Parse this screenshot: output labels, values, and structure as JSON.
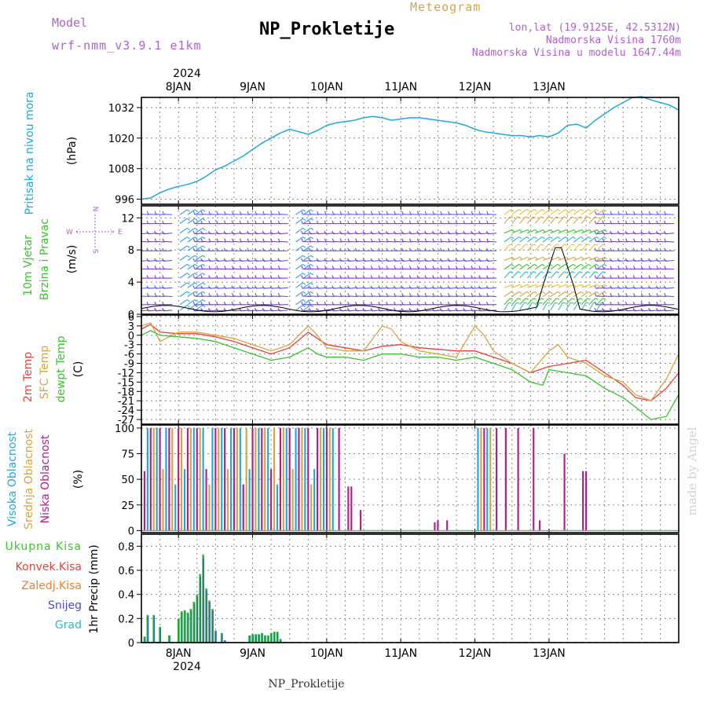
{
  "header": {
    "model_label": "Model",
    "model_name": "wrf-nmm_v3.9.1 e1km",
    "title": "NP_Prokletije",
    "subtitle": "Meteogram",
    "lonlat": "lon,lat (19.9125E, 42.5312N)",
    "altitude": "Nadmorska Visina 1760m",
    "model_altitude": "Nadmorska Visina u modelu 1647.44m",
    "footer": "NP_Prokletije",
    "credit": "made by Angel"
  },
  "colors": {
    "pressure": "#1fa8e0",
    "temp2m": "#e8413c",
    "sfc_temp": "#d9a441",
    "dewpt": "#39c42c",
    "cloud_high": "#1fa8e0",
    "cloud_mid": "#d9a441",
    "cloud_low": "#b0208a",
    "precip_total": "#39c42c",
    "precip_conv": "#e8413c",
    "precip_frozen": "#f07e2e",
    "snow": "#4b4bd6",
    "hail": "#2fb8c8",
    "header_purple": "#b260d0",
    "header_orange": "#d9a441"
  },
  "chart_data": [
    {
      "id": "pressure",
      "type": "line",
      "ylabel_left": "Pritisak na nivou mora",
      "unit": "(hPa)",
      "x_unit": "hours since 2024-01-07 12:00",
      "ylim": [
        994,
        1036
      ],
      "yticks": [
        996,
        1008,
        1020,
        1032
      ],
      "top_dates": {
        "year": "2024",
        "labels": [
          "8JAN",
          "9JAN",
          "10JAN",
          "11JAN",
          "12JAN",
          "13JAN"
        ]
      },
      "series": [
        {
          "x": [
            0,
            3,
            6,
            9,
            12,
            15,
            18,
            21,
            24,
            27,
            30,
            33,
            36,
            39,
            42,
            45,
            48,
            51,
            54,
            57,
            60,
            63,
            66,
            69,
            72,
            75,
            78,
            81,
            84,
            87,
            90,
            93,
            96,
            99,
            102,
            105,
            108,
            111,
            114,
            117,
            120,
            123,
            126,
            129,
            132,
            135,
            138,
            141,
            144,
            147,
            150,
            153,
            156,
            159,
            162,
            165,
            168,
            171,
            174,
            144
          ],
          "y": [
            996,
            996.5,
            998.5,
            1000,
            1001,
            1001.8,
            1003,
            1005,
            1007.5,
            1009,
            1011,
            1013,
            1015.5,
            1018,
            1020,
            1022,
            1023.5,
            1022.5,
            1021.5,
            1023,
            1025,
            1026,
            1026.5,
            1027,
            1028,
            1028.5,
            1028,
            1027,
            1027.5,
            1028,
            1028,
            1027.5,
            1027,
            1026.5,
            1026,
            1025,
            1023.5,
            1022.5,
            1022,
            1021.5,
            1021,
            1021,
            1020.5,
            1021,
            1020.5,
            1022,
            1025,
            1025.5,
            1024,
            1027,
            1029.5,
            1032,
            1034,
            1036,
            1036.3,
            1035,
            1034,
            1033,
            1031,
            1024
          ]
        }
      ]
    },
    {
      "id": "wind",
      "type": "barbs",
      "ylabel_left": [
        "10m Vjetar",
        "Brzina i Pravac"
      ],
      "unit": "(m/s)",
      "compass": {
        "n": "N",
        "s": "S",
        "e": "E",
        "w": "W"
      },
      "ylim": [
        0,
        13.5
      ],
      "yticks": [
        0,
        4,
        8,
        12
      ]
    },
    {
      "id": "temperature",
      "type": "line",
      "ylabel_left": [
        "2m Temp",
        "SFC Temp",
        "dewpt Temp"
      ],
      "unit": "(C)",
      "ylim": [
        -28.5,
        6.5
      ],
      "yticks": [
        6,
        3,
        0,
        -3,
        -6,
        -9,
        -12,
        -15,
        -18,
        -21,
        -24,
        -27
      ],
      "series": [
        {
          "id": "temp2m",
          "x": [
            0,
            3,
            6,
            12,
            18,
            24,
            30,
            36,
            42,
            48,
            54,
            57,
            60,
            66,
            72,
            78,
            84,
            90,
            96,
            102,
            108,
            114,
            120,
            126,
            132,
            138,
            144,
            150,
            156,
            160,
            165,
            170,
            174
          ],
          "y": [
            2,
            3.5,
            1,
            0.5,
            0.5,
            -0.5,
            -2,
            -4,
            -6,
            -4,
            1,
            -1,
            -3,
            -4,
            -5,
            -3.5,
            -3,
            -4,
            -4.5,
            -5,
            -5,
            -7,
            -9,
            -12,
            -10,
            -9,
            -8,
            -12,
            -16,
            -20,
            -21,
            -17,
            -12
          ]
        },
        {
          "id": "sfc_temp",
          "x": [
            0,
            3,
            5,
            6,
            12,
            18,
            24,
            30,
            36,
            42,
            48,
            54,
            57,
            60,
            66,
            72,
            78,
            81,
            84,
            90,
            96,
            102,
            108,
            111,
            114,
            120,
            126,
            132,
            135,
            138,
            144,
            150,
            156,
            160,
            165,
            170,
            174
          ],
          "y": [
            3,
            4,
            0,
            -2,
            1,
            1,
            0,
            -1,
            -3,
            -5,
            -3,
            3,
            0,
            -4,
            -5,
            -5,
            3,
            2,
            -2,
            -5,
            -6,
            -7,
            3,
            0,
            -5,
            -9,
            -12,
            -5,
            -3,
            -7,
            -9,
            -13,
            -15,
            -19,
            -21,
            -14,
            -6
          ]
        },
        {
          "id": "dewpt",
          "x": [
            0,
            3,
            6,
            12,
            18,
            24,
            30,
            36,
            42,
            48,
            54,
            57,
            60,
            66,
            72,
            78,
            84,
            90,
            96,
            102,
            108,
            114,
            120,
            126,
            130,
            132,
            138,
            144,
            150,
            156,
            160,
            165,
            170,
            174
          ],
          "y": [
            0,
            1.5,
            0,
            -0.5,
            -1,
            -2,
            -4,
            -6,
            -8,
            -7,
            -4,
            -6,
            -7,
            -7,
            -8,
            -6,
            -6,
            -7,
            -7,
            -8,
            -7,
            -9,
            -11,
            -15,
            -16,
            -11,
            -12,
            -13,
            -17,
            -20,
            -23,
            -27,
            -26,
            -19
          ]
        }
      ]
    },
    {
      "id": "clouds",
      "type": "bar",
      "ylabel_left": [
        "Visoka Oblacnost",
        "Srednja Oblacnost",
        "Niska Oblacnost"
      ],
      "unit": "(%)",
      "ylim": [
        -2,
        103
      ],
      "yticks": [
        0,
        25,
        50,
        75,
        100
      ]
    },
    {
      "id": "precip",
      "type": "bar",
      "labels": [
        "Ukupna Kisa",
        "Konvek.Kisa",
        "Zaledj.Kisa",
        "Snijeg",
        "Grad"
      ],
      "unit": "1hr Precip (mm)",
      "ylim": [
        0,
        0.9
      ],
      "yticks": [
        0,
        0.2,
        0.4,
        0.6,
        0.8
      ],
      "ytick_labels": [
        "0",
        "0.2",
        "0.4",
        "0.6",
        "0.8"
      ],
      "bottom_dates": {
        "year": "2024",
        "labels": [
          "8JAN",
          "9JAN",
          "10JAN",
          "11JAN",
          "12JAN",
          "13JAN"
        ]
      },
      "bars": {
        "x": [
          1,
          2,
          4,
          6,
          9,
          12,
          13,
          14,
          15,
          16,
          17,
          18,
          19,
          20,
          21,
          22,
          23,
          24,
          26,
          27,
          35,
          36,
          37,
          38,
          39,
          40,
          41,
          42,
          43,
          44,
          45
        ],
        "y": [
          0.05,
          0.23,
          0.23,
          0.13,
          0.06,
          0.2,
          0.26,
          0.27,
          0.25,
          0.28,
          0.34,
          0.4,
          0.57,
          0.73,
          0.45,
          0.35,
          0.28,
          0.1,
          0.08,
          0.02,
          0.06,
          0.07,
          0.07,
          0.07,
          0.08,
          0.06,
          0.06,
          0.08,
          0.09,
          0.09,
          0.03
        ]
      }
    }
  ]
}
